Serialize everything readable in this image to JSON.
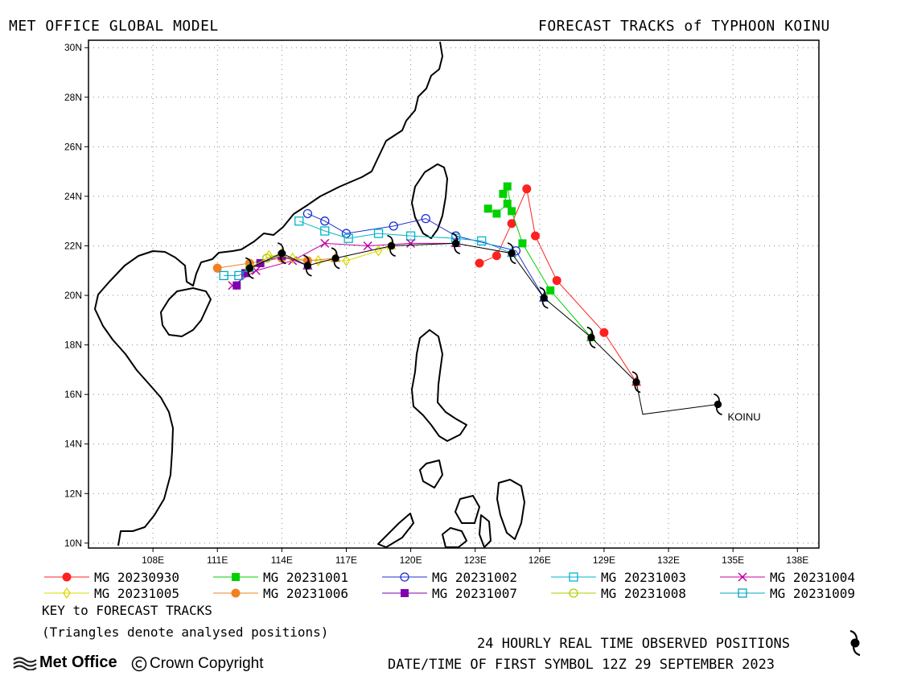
{
  "header": {
    "left_title": "MET OFFICE GLOBAL MODEL",
    "right_title": "FORECAST TRACKS of TYPHOON KOINU"
  },
  "map": {
    "lon_range": [
      105,
      139
    ],
    "lat_range": [
      9.8,
      30.3
    ],
    "lon_labels": [
      "108E",
      "111E",
      "114E",
      "117E",
      "120E",
      "123E",
      "126E",
      "129E",
      "132E",
      "135E",
      "138E"
    ],
    "lat_labels": [
      "30N",
      "28N",
      "26N",
      "24N",
      "22N",
      "20N",
      "18N",
      "16N",
      "14N",
      "12N",
      "10N"
    ],
    "storm_label": "KOINU",
    "colors": {
      "coast": "#000000",
      "grid": "#888888"
    }
  },
  "legend": {
    "items": [
      {
        "label": "MG 20230930",
        "color": "#ff2020",
        "marker": "filled-circle"
      },
      {
        "label": "MG 20231001",
        "color": "#00d000",
        "marker": "filled-square"
      },
      {
        "label": "MG 20231002",
        "color": "#1c2fd0",
        "marker": "open-circle"
      },
      {
        "label": "MG 20231003",
        "color": "#00b5c8",
        "marker": "open-square"
      },
      {
        "label": "MG 20231004",
        "color": "#c000a0",
        "marker": "cross"
      },
      {
        "label": "MG 20231005",
        "color": "#d8d800",
        "marker": "open-diamond"
      },
      {
        "label": "MG 20231006",
        "color": "#f08020",
        "marker": "filled-circle"
      },
      {
        "label": "MG 20231007",
        "color": "#8000b0",
        "marker": "filled-square"
      },
      {
        "label": "MG 20231008",
        "color": "#a8d000",
        "marker": "open-circle"
      },
      {
        "label": "MG 20231009",
        "color": "#00a8c0",
        "marker": "open-square"
      }
    ],
    "key_title": "KEY to FORECAST TRACKS",
    "key_note": "(Triangles denote analysed positions)"
  },
  "footer": {
    "observed_text": "24 HOURLY REAL TIME OBSERVED POSITIONS",
    "datetime_text": "DATE/TIME OF FIRST SYMBOL 12Z 29 SEPTEMBER 2023",
    "logo_text": "Met Office",
    "copyright_text": "Crown Copyright"
  },
  "observed_track": [
    [
      134.3,
      15.6
    ],
    [
      130.8,
      15.2
    ],
    [
      130.5,
      16.5
    ],
    [
      128.4,
      18.3
    ],
    [
      126.2,
      19.9
    ],
    [
      124.7,
      21.7
    ],
    [
      122.1,
      22.1
    ],
    [
      119.1,
      22.0
    ],
    [
      116.5,
      21.5
    ],
    [
      115.2,
      21.2
    ],
    [
      114.0,
      21.7
    ],
    [
      112.5,
      21.1
    ]
  ],
  "forecast_tracks": [
    {
      "series": "MG 20230930",
      "points": [
        [
          130.5,
          16.5
        ],
        [
          129.0,
          18.5
        ],
        [
          126.8,
          20.6
        ],
        [
          125.8,
          22.4
        ],
        [
          125.4,
          24.3
        ],
        [
          124.7,
          22.9
        ],
        [
          124.0,
          21.6
        ],
        [
          123.2,
          21.3
        ]
      ]
    },
    {
      "series": "MG 20231001",
      "points": [
        [
          128.4,
          18.3
        ],
        [
          126.5,
          20.2
        ],
        [
          125.2,
          22.1
        ],
        [
          124.7,
          23.4
        ],
        [
          124.5,
          24.4
        ],
        [
          124.3,
          24.1
        ],
        [
          124.5,
          23.7
        ],
        [
          124.0,
          23.3
        ],
        [
          123.6,
          23.5
        ]
      ]
    },
    {
      "series": "MG 20231002",
      "points": [
        [
          126.2,
          19.9
        ],
        [
          124.9,
          21.8
        ],
        [
          122.1,
          22.4
        ],
        [
          120.7,
          23.1
        ],
        [
          119.2,
          22.8
        ],
        [
          117.0,
          22.5
        ],
        [
          116.0,
          23.0
        ],
        [
          115.2,
          23.3
        ]
      ]
    },
    {
      "series": "MG 20231003",
      "points": [
        [
          124.7,
          21.7
        ],
        [
          123.3,
          22.2
        ],
        [
          122.1,
          22.3
        ],
        [
          120.0,
          22.4
        ],
        [
          118.5,
          22.5
        ],
        [
          117.1,
          22.3
        ],
        [
          116.0,
          22.6
        ],
        [
          114.8,
          23.0
        ]
      ]
    },
    {
      "series": "MG 20231004",
      "points": [
        [
          122.1,
          22.1
        ],
        [
          120.0,
          22.1
        ],
        [
          118.0,
          22.0
        ],
        [
          116.0,
          22.1
        ],
        [
          114.5,
          21.4
        ],
        [
          112.8,
          21.0
        ],
        [
          111.7,
          20.4
        ]
      ]
    },
    {
      "series": "MG 20231005",
      "points": [
        [
          119.1,
          22.0
        ],
        [
          118.5,
          21.8
        ],
        [
          117.0,
          21.4
        ],
        [
          115.7,
          21.4
        ],
        [
          114.5,
          21.5
        ],
        [
          113.4,
          21.6
        ]
      ]
    },
    {
      "series": "MG 20231006",
      "points": [
        [
          116.5,
          21.5
        ],
        [
          115.2,
          21.4
        ],
        [
          114.0,
          21.5
        ],
        [
          112.5,
          21.3
        ],
        [
          111.0,
          21.1
        ]
      ]
    },
    {
      "series": "MG 20231007",
      "points": [
        [
          115.2,
          21.2
        ],
        [
          114.0,
          21.6
        ],
        [
          113.0,
          21.3
        ],
        [
          112.3,
          20.9
        ],
        [
          111.9,
          20.4
        ]
      ]
    },
    {
      "series": "MG 20231008",
      "points": [
        [
          114.0,
          21.7
        ],
        [
          113.3,
          21.5
        ],
        [
          112.5,
          21.1
        ]
      ]
    },
    {
      "series": "MG 20231009",
      "points": [
        [
          112.5,
          21.1
        ],
        [
          112.0,
          20.8
        ],
        [
          111.3,
          20.8
        ]
      ]
    }
  ]
}
